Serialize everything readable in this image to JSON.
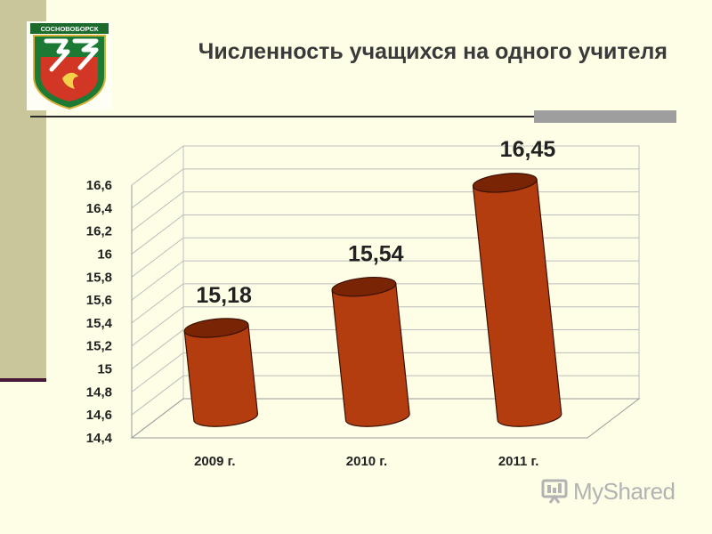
{
  "slide": {
    "title": "Численность учащихся на одного учителя",
    "emblem_text": "СОСНОВОБОРСК",
    "watermark": "MyShared"
  },
  "colors": {
    "background": "#fefee6",
    "side_band": "#c9c79a",
    "bar_fill": "#b43d10",
    "bar_dark": "#7a2406",
    "text": "#222222"
  },
  "chart_data": {
    "type": "bar",
    "categories": [
      "2009 г.",
      "2010 г.",
      "2011 г."
    ],
    "values": [
      15.18,
      15.54,
      16.45
    ],
    "data_labels": [
      "15,18",
      "15,54",
      "16,45"
    ],
    "ylim": [
      14.4,
      16.6
    ],
    "y_ticks": [
      14.4,
      14.6,
      14.8,
      15,
      15.2,
      15.4,
      15.6,
      15.8,
      16,
      16.2,
      16.4,
      16.6
    ],
    "y_tick_labels": [
      "14,4",
      "14,6",
      "14,8",
      "15",
      "15,2",
      "15,4",
      "15,6",
      "15,8",
      "16",
      "16,2",
      "16,4",
      "16,6"
    ],
    "grid": true,
    "style": "3d-cylinder",
    "title": "",
    "xlabel": "",
    "ylabel": ""
  }
}
